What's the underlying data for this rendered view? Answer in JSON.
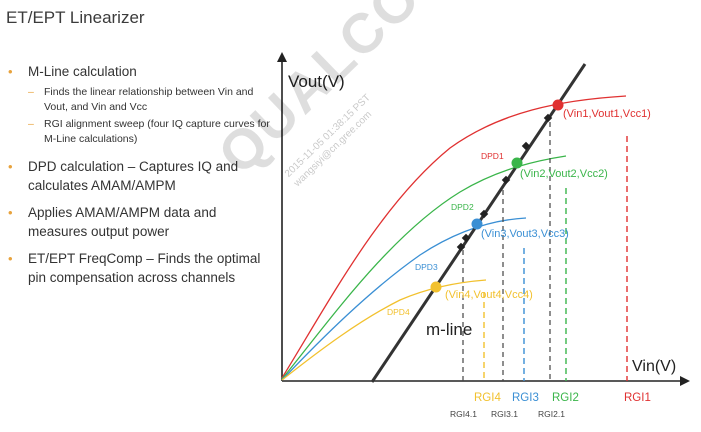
{
  "title": "ET/EPT Linearizer",
  "bullets": [
    {
      "text": "M-Line calculation",
      "subs": [
        "Finds the linear relationship between Vin and Vout, and Vin and Vcc",
        "RGI alignment sweep (four IQ capture curves for M-Line calculations)"
      ]
    },
    {
      "text": "DPD calculation – Captures IQ and calculates AMAM/AMPM",
      "subs": []
    },
    {
      "text": "Applies AMAM/AMPM data and measures output power",
      "subs": []
    },
    {
      "text": "ET/EPT FreqComp – Finds the optimal pin compensation across channels",
      "subs": []
    }
  ],
  "watermark": {
    "brand": "QUALCOMM",
    "line1": "2015-11-05 01:38:15 PST",
    "line2": "wangsiyi@cn.gree.com"
  },
  "chart": {
    "y_axis_label": "Vout(V)",
    "x_axis_label": "Vin(V)",
    "mline_label": "m-line",
    "dpd_labels": [
      "DPD1",
      "DPD2",
      "DPD3",
      "DPD4"
    ],
    "points": [
      "(Vin1,Vout1,Vcc1)",
      "(Vin2,Vout2,Vcc2)",
      "(Vin3,Vout3,Vcc3)",
      "(Vin4,Vout4,Vcc4)"
    ],
    "rgi": [
      "RGI4",
      "RGI3",
      "RGI2",
      "RGI1"
    ],
    "rgi_sub": [
      "RGI4.1",
      "RGI3.1",
      "RGI2.1"
    ],
    "colors": {
      "red": "#e03131",
      "green": "#3ab54a",
      "blue": "#3a8fd4",
      "yellow": "#f2c12e",
      "bullet": "#e8a33d"
    }
  }
}
